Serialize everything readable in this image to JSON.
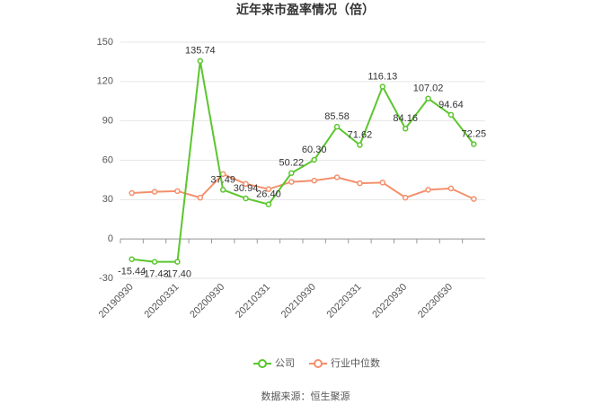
{
  "chart_data": {
    "type": "line",
    "title": "近年来市盈率情况（倍）",
    "categories": [
      "20190930",
      null,
      "20200331",
      null,
      "20200930",
      null,
      "20210331",
      null,
      "20210930",
      null,
      "20220331",
      null,
      "20220930",
      null,
      "20230630",
      null
    ],
    "series": [
      {
        "name": "公司",
        "color": "#5cc62e",
        "values": [
          -15.44,
          -17.43,
          -17.4,
          135.74,
          37.49,
          30.94,
          26.4,
          50.22,
          60.3,
          85.58,
          71.62,
          116.13,
          84.16,
          107.02,
          94.64,
          72.25
        ],
        "value_labels": [
          "-15.44",
          "-17.43",
          "-17.40",
          "135.74",
          "37.49",
          "30.94",
          "26.40",
          "50.22",
          "60.30",
          "85.58",
          "71.62",
          "116.13",
          "84.16",
          "107.02",
          "94.64",
          "72.25"
        ]
      },
      {
        "name": "行业中位数",
        "color": "#f4906c",
        "values": [
          35,
          36,
          36.5,
          31.5,
          49.5,
          42,
          38,
          43.5,
          44.5,
          47,
          42.5,
          43,
          31.5,
          37.5,
          38.5,
          30.5
        ]
      }
    ],
    "ylim": [
      -30,
      150
    ],
    "yticks": [
      -30,
      0,
      30,
      60,
      90,
      120,
      150
    ],
    "grid": true,
    "legend": "bottom",
    "source": "数据来源：恒生聚源"
  }
}
